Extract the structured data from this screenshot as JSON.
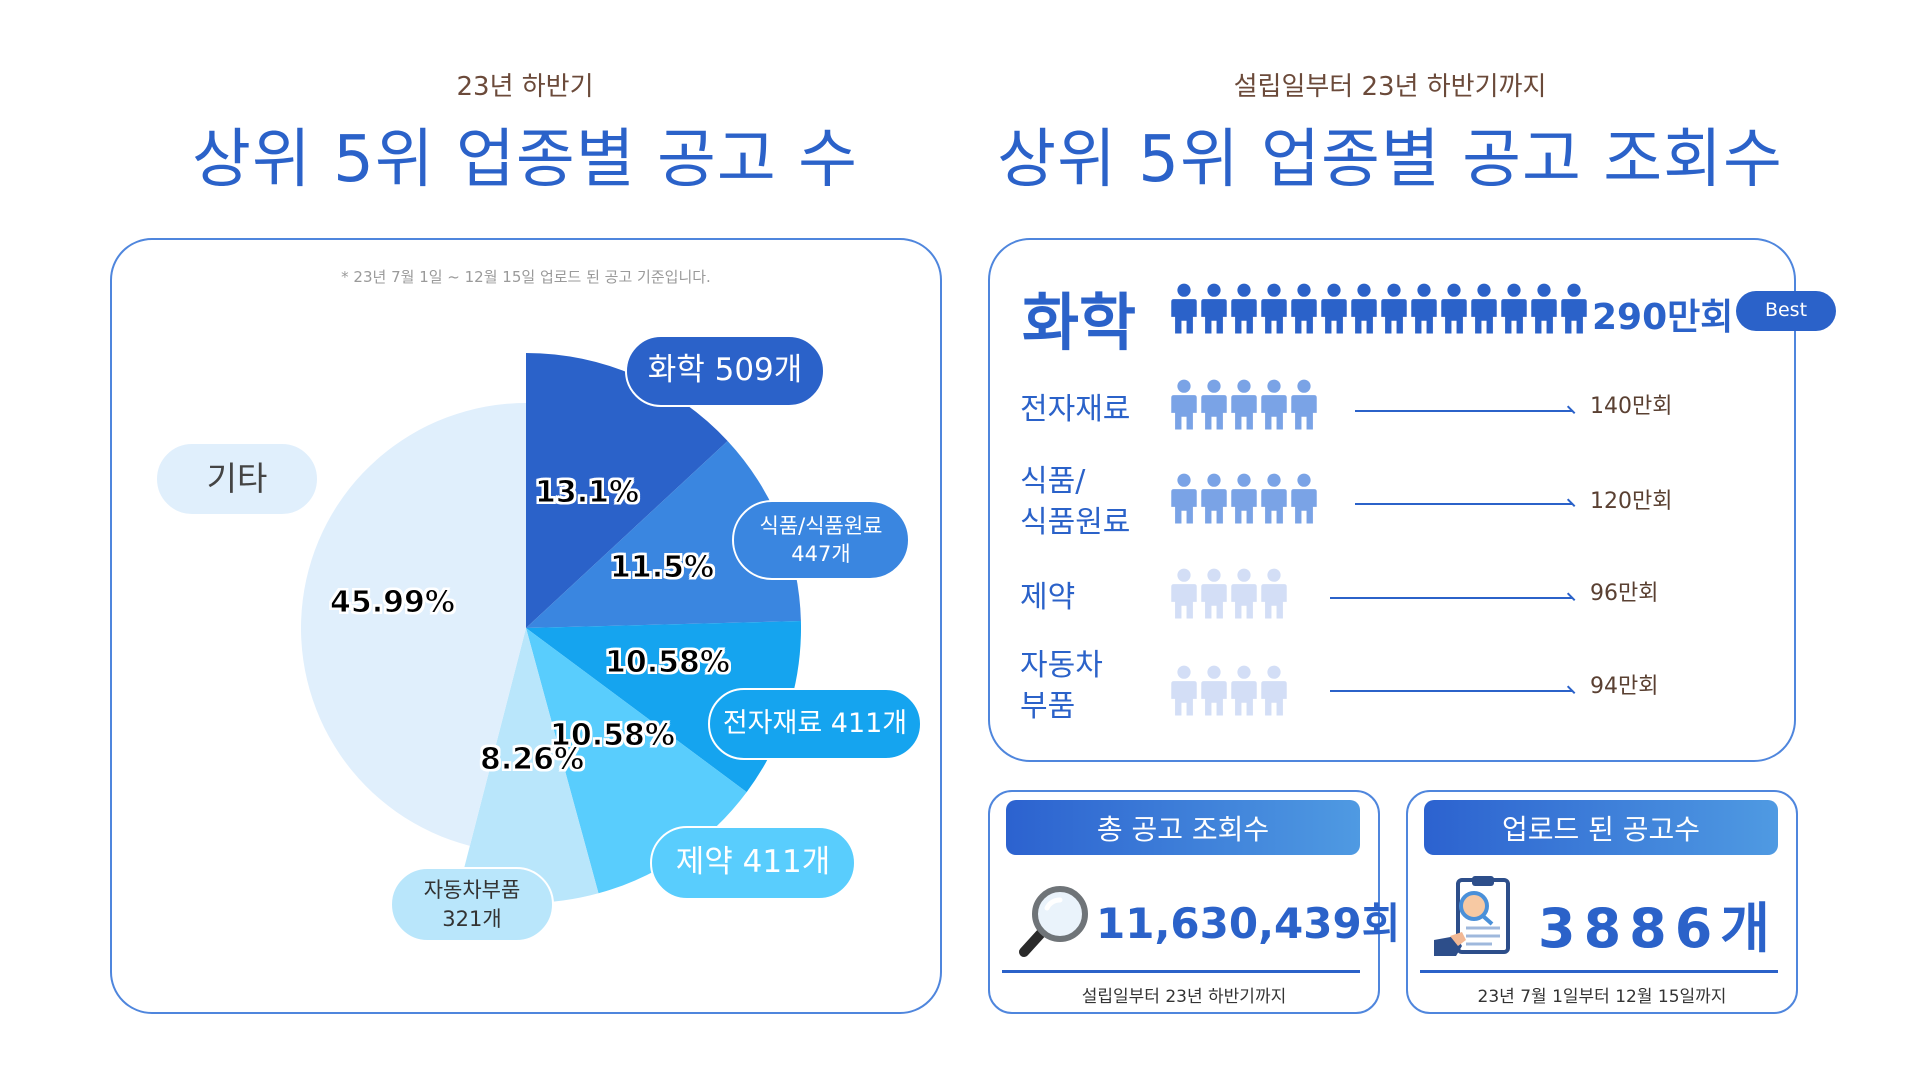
{
  "left": {
    "subtitle": "23년 하반기",
    "title": "상위 5위 업종별 공고 수",
    "note": "* 23년 7월 1일 ~ 12월 15일 업로드 된 공고 기준입니다.",
    "labels": {
      "chem": "화학 509개",
      "food_line1": "식품/식품원료",
      "food_line2": "447개",
      "elec": "전자재료 411개",
      "pharma": "제약 411개",
      "auto_line1": "자동차부품",
      "auto_line2": "321개",
      "etc": "기타"
    }
  },
  "chart_data": {
    "type": "pie",
    "title": "상위 5위 업종별 공고 수",
    "slices": [
      {
        "label": "화학 509개",
        "value": 13.1,
        "display": "13.1%",
        "color": "#2b62c9"
      },
      {
        "label": "식품/식품원료 447개",
        "value": 11.5,
        "display": "11.5%",
        "color": "#3a86e0"
      },
      {
        "label": "전자재료 411개",
        "value": 10.58,
        "display": "10.58%",
        "color": "#15a4ef"
      },
      {
        "label": "제약 411개",
        "value": 10.58,
        "display": "10.58%",
        "color": "#59cdfd"
      },
      {
        "label": "자동차부품 321개",
        "value": 8.26,
        "display": "8.26%",
        "color": "#b9e6fb"
      },
      {
        "label": "기타",
        "value": 45.99,
        "display": "45.99%",
        "color": "#e0effc"
      }
    ]
  },
  "right": {
    "subtitle": "설립일부터 23년 하반기까지",
    "title": "상위 5위 업종별 공고 조회수",
    "top": {
      "label": "화학",
      "value": "290만회",
      "badge": "Best",
      "icons": 14,
      "color": "#2b62c9"
    },
    "rows": [
      {
        "line1": "전자재료",
        "line2": "",
        "value": "140만회",
        "icons": 5,
        "color": "#7aa3e6"
      },
      {
        "line1": "식품/",
        "line2": "식품원료",
        "value": "120만회",
        "icons": 5,
        "color": "#7aa3e6"
      },
      {
        "line1": "제약",
        "line2": "",
        "value": "96만회",
        "icons": 4,
        "color": "#d3def6"
      },
      {
        "line1": "자동차",
        "line2": "부품",
        "value": "94만회",
        "icons": 4,
        "color": "#d3def6"
      }
    ]
  },
  "cards": {
    "views": {
      "header": "총 공고 조회수",
      "value": "11,630,439회",
      "note": "설립일부터 23년 하반기까지",
      "icon": "magnifier-icon"
    },
    "uploads": {
      "header": "업로드 된 공고수",
      "value": "3886개",
      "note": "23년 7월 1일부터 12월 15일까지",
      "icon": "document-review-icon"
    }
  }
}
